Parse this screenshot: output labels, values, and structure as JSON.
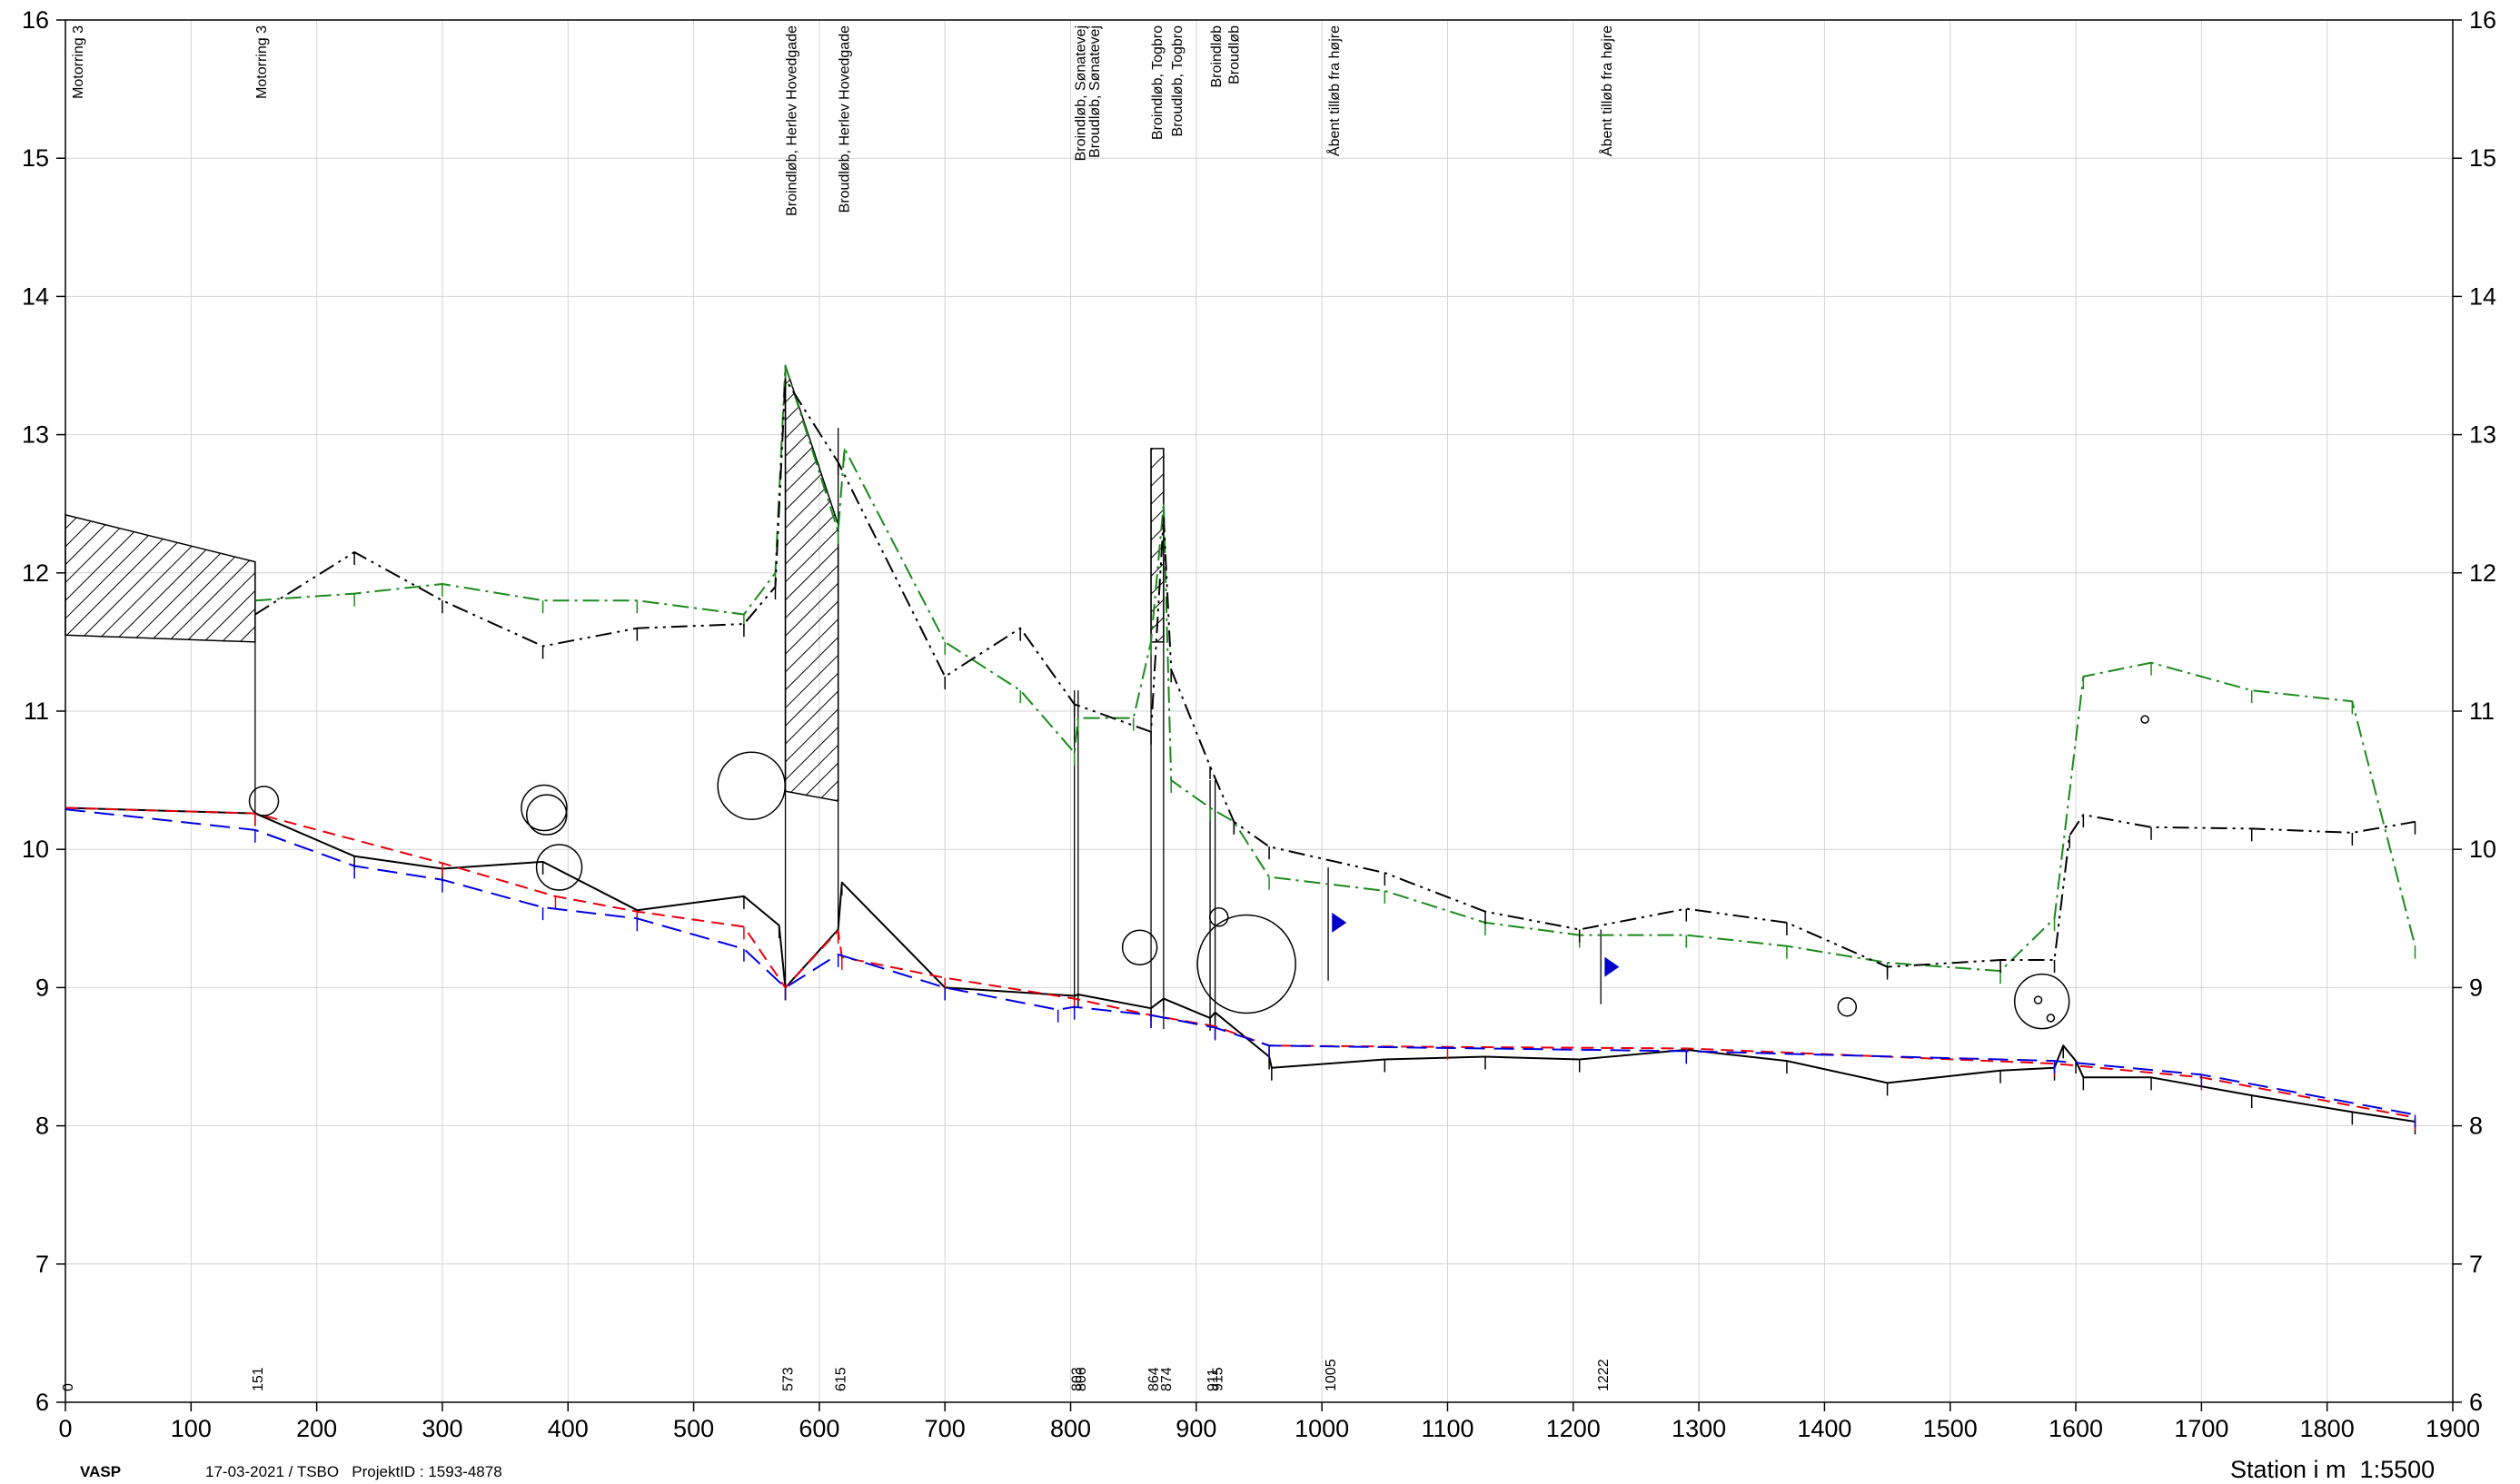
{
  "footer": {
    "logo": "VASP",
    "meta": "17-03-2021 / TSBO   ProjektID : 1593-4878",
    "scale": "Station i m  1:5500"
  },
  "chart_data": {
    "type": "line",
    "title": "",
    "xlabel": "Station i m  1:5500",
    "ylabel": "",
    "xlim": [
      0,
      1900
    ],
    "ylim": [
      6,
      16
    ],
    "grid": true,
    "x_ticks": [
      0,
      100,
      200,
      300,
      400,
      500,
      600,
      700,
      800,
      900,
      1000,
      1100,
      1200,
      1300,
      1400,
      1500,
      1600,
      1700,
      1800,
      1900
    ],
    "y_ticks": [
      6,
      7,
      8,
      9,
      10,
      11,
      12,
      13,
      14,
      15,
      16
    ],
    "station_labels": [
      {
        "x": 0,
        "label": "0"
      },
      {
        "x": 151,
        "label": "151"
      },
      {
        "x": 573,
        "label": "573"
      },
      {
        "x": 615,
        "label": "615"
      },
      {
        "x": 803,
        "label": "803"
      },
      {
        "x": 806,
        "label": "806"
      },
      {
        "x": 864,
        "label": "864"
      },
      {
        "x": 874,
        "label": "874"
      },
      {
        "x": 911,
        "label": "911"
      },
      {
        "x": 915,
        "label": "915"
      },
      {
        "x": 1005,
        "label": "1005"
      },
      {
        "x": 1222,
        "label": "1222"
      }
    ],
    "top_labels": [
      {
        "x": 5,
        "label": "Motorring 3"
      },
      {
        "x": 151,
        "label": "Motorring 3"
      },
      {
        "x": 573,
        "label": "Broindløb, Herlev Hovedgade"
      },
      {
        "x": 615,
        "label": "Broudløb, Herlev Hovedgade"
      },
      {
        "x": 803,
        "label": "Broindløb, Sønatevej"
      },
      {
        "x": 814,
        "label": "Broudløb, Sønatevej"
      },
      {
        "x": 864,
        "label": "Broindløb, Togbro"
      },
      {
        "x": 880,
        "label": "Broudløb, Togbro"
      },
      {
        "x": 911,
        "label": "Broindløb"
      },
      {
        "x": 925,
        "label": "Broudløb"
      },
      {
        "x": 1005,
        "label": "Åbent tilløb fra højre"
      },
      {
        "x": 1222,
        "label": "Åbent tilløb fra højre"
      }
    ],
    "series": [
      {
        "color": "#000000",
        "dash": "solid",
        "points": [
          [
            0,
            10.3
          ],
          [
            151,
            10.26
          ],
          [
            230,
            9.95
          ],
          [
            300,
            9.86
          ],
          [
            380,
            9.91
          ],
          [
            455,
            9.56
          ],
          [
            540,
            9.66
          ],
          [
            568,
            9.45
          ],
          [
            573,
            9.0
          ],
          [
            615,
            9.42
          ],
          [
            618,
            9.76
          ],
          [
            700,
            9.0
          ],
          [
            803,
            8.94
          ],
          [
            806,
            8.95
          ],
          [
            864,
            8.85
          ],
          [
            874,
            8.92
          ],
          [
            911,
            8.78
          ],
          [
            915,
            8.82
          ],
          [
            958,
            8.5
          ],
          [
            960,
            8.42
          ],
          [
            1050,
            8.48
          ],
          [
            1130,
            8.5
          ],
          [
            1205,
            8.48
          ],
          [
            1290,
            8.55
          ],
          [
            1370,
            8.47
          ],
          [
            1450,
            8.31
          ],
          [
            1540,
            8.4
          ],
          [
            1583,
            8.42
          ],
          [
            1590,
            8.58
          ],
          [
            1600,
            8.47
          ],
          [
            1606,
            8.35
          ],
          [
            1660,
            8.35
          ],
          [
            1740,
            8.22
          ],
          [
            1820,
            8.1
          ],
          [
            1870,
            8.03
          ]
        ]
      },
      {
        "color": "#e8000b",
        "dash": "dashed",
        "points": [
          [
            0,
            10.3
          ],
          [
            151,
            10.26
          ],
          [
            300,
            9.9
          ],
          [
            390,
            9.66
          ],
          [
            455,
            9.55
          ],
          [
            540,
            9.44
          ],
          [
            573,
            9.0
          ],
          [
            615,
            9.41
          ],
          [
            618,
            9.22
          ],
          [
            700,
            9.07
          ],
          [
            803,
            8.92
          ],
          [
            864,
            8.8
          ],
          [
            915,
            8.72
          ],
          [
            958,
            8.58
          ],
          [
            1100,
            8.57
          ],
          [
            1290,
            8.56
          ],
          [
            1583,
            8.45
          ],
          [
            1700,
            8.35
          ],
          [
            1870,
            8.06
          ]
        ]
      },
      {
        "color": "#0000e0",
        "dash": "longdash",
        "points": [
          [
            0,
            10.29
          ],
          [
            151,
            10.14
          ],
          [
            230,
            9.88
          ],
          [
            300,
            9.78
          ],
          [
            380,
            9.58
          ],
          [
            455,
            9.5
          ],
          [
            540,
            9.28
          ],
          [
            573,
            9.0
          ],
          [
            615,
            9.24
          ],
          [
            700,
            9.0
          ],
          [
            790,
            8.84
          ],
          [
            803,
            8.86
          ],
          [
            864,
            8.8
          ],
          [
            915,
            8.71
          ],
          [
            958,
            8.58
          ],
          [
            1290,
            8.54
          ],
          [
            1583,
            8.47
          ],
          [
            1700,
            8.37
          ],
          [
            1870,
            8.08
          ]
        ]
      },
      {
        "color": "#1b8a1b",
        "dash": "dashdot",
        "points": [
          [
            151,
            11.8
          ],
          [
            230,
            11.85
          ],
          [
            300,
            11.92
          ],
          [
            380,
            11.8
          ],
          [
            455,
            11.8
          ],
          [
            540,
            11.7
          ],
          [
            565,
            12.0
          ],
          [
            573,
            13.5
          ],
          [
            615,
            12.3
          ],
          [
            620,
            12.9
          ],
          [
            700,
            11.5
          ],
          [
            760,
            11.15
          ],
          [
            803,
            10.7
          ],
          [
            806,
            10.95
          ],
          [
            850,
            10.95
          ],
          [
            864,
            11.5
          ],
          [
            874,
            12.5
          ],
          [
            880,
            10.5
          ],
          [
            911,
            10.3
          ],
          [
            930,
            10.2
          ],
          [
            958,
            9.8
          ],
          [
            1050,
            9.7
          ],
          [
            1130,
            9.47
          ],
          [
            1205,
            9.38
          ],
          [
            1290,
            9.38
          ],
          [
            1370,
            9.3
          ],
          [
            1450,
            9.18
          ],
          [
            1540,
            9.12
          ],
          [
            1583,
            9.5
          ],
          [
            1606,
            11.25
          ],
          [
            1660,
            11.35
          ],
          [
            1740,
            11.15
          ],
          [
            1820,
            11.07
          ],
          [
            1870,
            9.3
          ]
        ]
      },
      {
        "color": "#000000",
        "dash": "dashdotdot",
        "points": [
          [
            151,
            11.7
          ],
          [
            230,
            12.15
          ],
          [
            300,
            11.8
          ],
          [
            380,
            11.47
          ],
          [
            455,
            11.6
          ],
          [
            540,
            11.63
          ],
          [
            565,
            11.9
          ],
          [
            573,
            13.4
          ],
          [
            615,
            12.8
          ],
          [
            700,
            11.25
          ],
          [
            760,
            11.6
          ],
          [
            803,
            11.05
          ],
          [
            864,
            10.85
          ],
          [
            874,
            12.4
          ],
          [
            880,
            11.3
          ],
          [
            911,
            10.6
          ],
          [
            930,
            10.2
          ],
          [
            958,
            10.02
          ],
          [
            1050,
            9.83
          ],
          [
            1130,
            9.55
          ],
          [
            1205,
            9.42
          ],
          [
            1290,
            9.57
          ],
          [
            1370,
            9.47
          ],
          [
            1450,
            9.15
          ],
          [
            1540,
            9.2
          ],
          [
            1583,
            9.2
          ],
          [
            1595,
            10.1
          ],
          [
            1606,
            10.25
          ],
          [
            1660,
            10.16
          ],
          [
            1740,
            10.15
          ],
          [
            1820,
            10.12
          ],
          [
            1870,
            10.2
          ]
        ]
      }
    ],
    "hatched_areas": [
      {
        "points": [
          [
            0,
            12.42
          ],
          [
            151,
            12.08
          ],
          [
            151,
            11.5
          ],
          [
            0,
            11.55
          ]
        ]
      },
      {
        "points": [
          [
            573,
            13.5
          ],
          [
            615,
            12.35
          ],
          [
            615,
            10.35
          ],
          [
            573,
            10.42
          ]
        ]
      },
      {
        "points": [
          [
            864,
            12.9
          ],
          [
            874,
            12.9
          ],
          [
            874,
            11.5
          ],
          [
            864,
            11.5
          ]
        ]
      }
    ],
    "vertical_markers": [
      {
        "x": 151,
        "y1": 10.26,
        "y2": 12.08
      },
      {
        "x": 573,
        "y1": 9.0,
        "y2": 13.5
      },
      {
        "x": 615,
        "y1": 9.42,
        "y2": 13.05
      },
      {
        "x": 803,
        "y1": 8.9,
        "y2": 11.15
      },
      {
        "x": 806,
        "y1": 8.9,
        "y2": 11.15
      },
      {
        "x": 864,
        "y1": 8.8,
        "y2": 12.9
      },
      {
        "x": 874,
        "y1": 8.7,
        "y2": 12.9
      },
      {
        "x": 911,
        "y1": 8.75,
        "y2": 10.5
      },
      {
        "x": 915,
        "y1": 8.75,
        "y2": 10.5
      },
      {
        "x": 1005,
        "y1": 9.05,
        "y2": 9.87
      },
      {
        "x": 1222,
        "y1": 8.88,
        "y2": 9.42
      }
    ],
    "circles": [
      {
        "x": 158,
        "y": 10.35,
        "r": 16
      },
      {
        "x": 381,
        "y": 10.3,
        "r": 25
      },
      {
        "x": 383,
        "y": 10.25,
        "r": 22
      },
      {
        "x": 393,
        "y": 9.87,
        "r": 25
      },
      {
        "x": 546,
        "y": 10.46,
        "r": 37
      },
      {
        "x": 855,
        "y": 9.29,
        "r": 19
      },
      {
        "x": 940,
        "y": 9.17,
        "r": 54
      },
      {
        "x": 918,
        "y": 9.51,
        "r": 10
      },
      {
        "x": 1418,
        "y": 8.86,
        "r": 10
      },
      {
        "x": 1573,
        "y": 8.9,
        "r": 30
      },
      {
        "x": 1570,
        "y": 8.91,
        "r": 4
      },
      {
        "x": 1580,
        "y": 8.78,
        "r": 4
      },
      {
        "x": 1655,
        "y": 10.94,
        "r": 4
      }
    ],
    "flags": [
      {
        "x": 1008,
        "y": 9.47,
        "color": "#0000cc"
      },
      {
        "x": 1225,
        "y": 9.15,
        "color": "#0000cc"
      }
    ]
  }
}
